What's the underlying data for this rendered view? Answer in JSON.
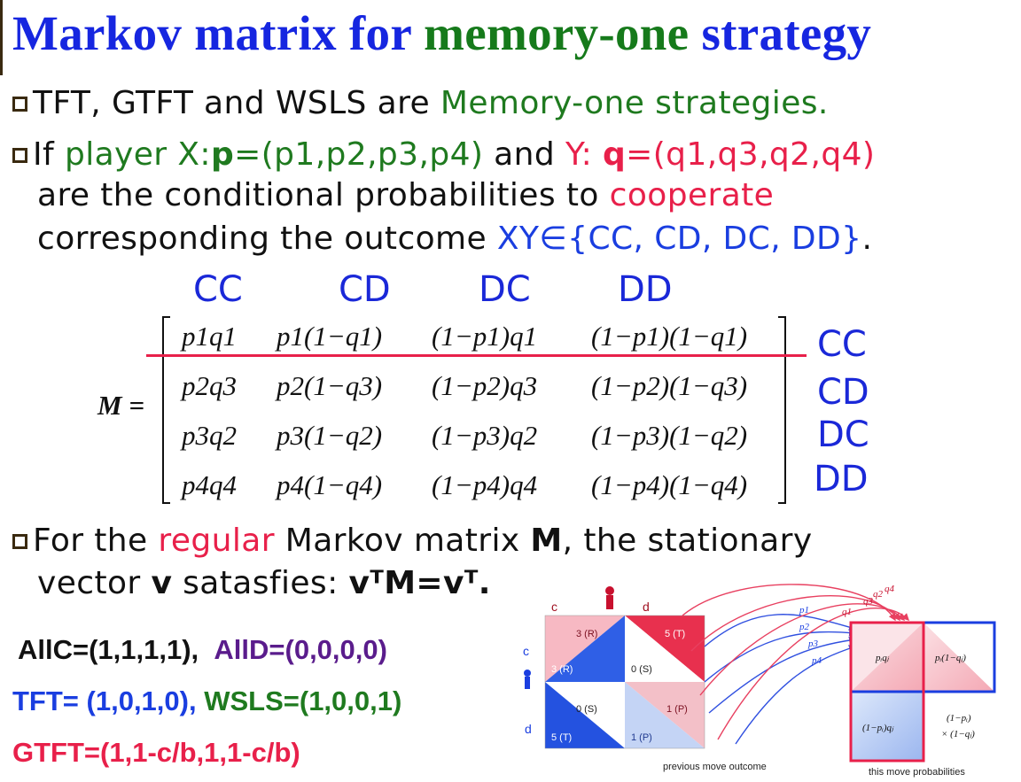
{
  "title": {
    "part1": "Markov matrix for ",
    "part2": "memory-one",
    "part3": " strategy"
  },
  "bullet1": {
    "text": "TFT, GTFT and WSLS are ",
    "highlight": "Memory-one strategies."
  },
  "bullet2": {
    "if": "If ",
    "player_x": "player X:",
    "p_bold": "p",
    "p_vec": "=(p1,p2,p3,p4)",
    "and": " and ",
    "y": "Y: ",
    "q_bold": "q",
    "q_vec": "=(q1,q3,q2,q4)",
    "line2_a": "are the conditional probabilities to ",
    "line2_b": "cooperate",
    "line3_a": "corresponding the outcome ",
    "line3_b": "XY∈{CC, CD, DC, DD}",
    "line3_c": "."
  },
  "matrix": {
    "label": "M =",
    "col_headers": [
      "CC",
      "CD",
      "DC",
      "DD"
    ],
    "row_labels": [
      "CC",
      "CD",
      "DC",
      "DD"
    ],
    "rows": [
      [
        "p1q1",
        "p1(1−q1)",
        "(1−p1)q1",
        "(1−p1)(1−q1)"
      ],
      [
        "p2q3",
        "p2(1−q3)",
        "(1−p2)q3",
        "(1−p2)(1−q3)"
      ],
      [
        "p3q2",
        "p3(1−q2)",
        "(1−p3)q2",
        "(1−p3)(1−q2)"
      ],
      [
        "p4q4",
        "p4(1−q4)",
        "(1−p4)q4",
        "(1−p4)(1−q4)"
      ]
    ]
  },
  "bullet3": {
    "a": "For the ",
    "regular": "regular",
    "b": " Markov matrix ",
    "M": "M",
    "c": ", the stationary",
    "d": "vector ",
    "v": "v",
    "e": " satasfies: ",
    "eq": "vᵀM=vᵀ."
  },
  "strategies": {
    "allc": "AllC=(1,1,1,1),",
    "alld": "AllD=(0,0,0,0)",
    "tft": "TFT= (1,0,1,0),",
    "wsls": "WSLS=(1,0,0,1)",
    "gtft": "GTFT=(1,1-c/b,1,1-c/b)"
  },
  "figure": {
    "col_c": "c",
    "col_d": "d",
    "row_c": "c",
    "row_d": "d",
    "cells": [
      "3 (R)",
      "5 (T)",
      "3 (R)",
      "0 (S)",
      "0 (S)",
      "1 (P)",
      "5 (T)",
      "1 (P)"
    ],
    "arrow_labels": [
      "p1",
      "p2",
      "p3",
      "p4",
      "q1",
      "q3",
      "q2",
      "q4"
    ],
    "right_cells": [
      "pᵢqⱼ",
      "pᵢ(1−qⱼ)",
      "(1−pᵢ)qⱼ",
      "(1−pᵢ)",
      "× (1−qⱼ)"
    ],
    "caption_left": "previous move outcome",
    "caption_right": "this move probabilities"
  }
}
